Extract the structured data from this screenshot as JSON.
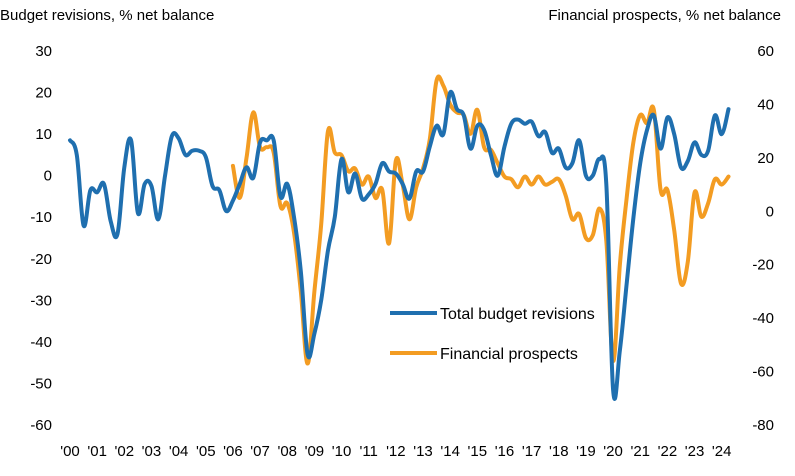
{
  "chart_data": {
    "type": "line",
    "title": "",
    "ylabel_left": "Budget revisions, % net balance",
    "ylabel_right": "Financial prospects, % net balance",
    "x_tick_labels": [
      "'00",
      "'01",
      "'02",
      "'03",
      "'04",
      "'05",
      "'06",
      "'07",
      "'08",
      "'09",
      "'10",
      "'11",
      "'12",
      "'13",
      "'14",
      "'15",
      "'16",
      "'17",
      "'18",
      "'19",
      "'20",
      "'21",
      "'22",
      "'23",
      "'24"
    ],
    "x_tick_years": [
      2000,
      2001,
      2002,
      2003,
      2004,
      2005,
      2006,
      2007,
      2008,
      2009,
      2010,
      2011,
      2012,
      2013,
      2014,
      2015,
      2016,
      2017,
      2018,
      2019,
      2020,
      2021,
      2022,
      2023,
      2024
    ],
    "xlim": [
      2000,
      2024.6
    ],
    "y_left": {
      "min": -60,
      "max": 30,
      "ticks": [
        30,
        20,
        10,
        0,
        -10,
        -20,
        -30,
        -40,
        -50,
        -60
      ]
    },
    "y_right": {
      "min": -80,
      "max": 60,
      "ticks": [
        60,
        40,
        20,
        0,
        -20,
        -40,
        -60,
        -80
      ]
    },
    "gridlines": false,
    "legend": {
      "placement": "center-right"
    },
    "series": [
      {
        "name": "Total budget revisions",
        "axis": "left",
        "color": "#1f6faf",
        "points": [
          [
            2000.0,
            8.5
          ],
          [
            2000.25,
            5.0
          ],
          [
            2000.5,
            -12.0
          ],
          [
            2000.75,
            -3.5
          ],
          [
            2001.0,
            -4.0
          ],
          [
            2001.25,
            -2.0
          ],
          [
            2001.5,
            -11.0
          ],
          [
            2001.75,
            -14.0
          ],
          [
            2002.0,
            2.0
          ],
          [
            2002.25,
            8.5
          ],
          [
            2002.5,
            -9.0
          ],
          [
            2002.75,
            -2.0
          ],
          [
            2003.0,
            -2.5
          ],
          [
            2003.25,
            -10.5
          ],
          [
            2003.5,
            0.0
          ],
          [
            2003.75,
            9.5
          ],
          [
            2004.0,
            9.0
          ],
          [
            2004.25,
            5.0
          ],
          [
            2004.5,
            6.0
          ],
          [
            2004.75,
            6.0
          ],
          [
            2005.0,
            4.5
          ],
          [
            2005.25,
            -2.5
          ],
          [
            2005.5,
            -3.5
          ],
          [
            2005.75,
            -8.5
          ],
          [
            2006.0,
            -6.0
          ],
          [
            2006.25,
            -2.0
          ],
          [
            2006.5,
            2.0
          ],
          [
            2006.75,
            -0.5
          ],
          [
            2007.0,
            8.0
          ],
          [
            2007.25,
            8.5
          ],
          [
            2007.5,
            8.5
          ],
          [
            2007.75,
            -5.0
          ],
          [
            2008.0,
            -2.0
          ],
          [
            2008.25,
            -10.0
          ],
          [
            2008.5,
            -23.0
          ],
          [
            2008.75,
            -43.0
          ],
          [
            2009.0,
            -38.0
          ],
          [
            2009.25,
            -30.0
          ],
          [
            2009.5,
            -18.0
          ],
          [
            2009.75,
            -10.0
          ],
          [
            2010.0,
            4.0
          ],
          [
            2010.25,
            -4.0
          ],
          [
            2010.5,
            0.5
          ],
          [
            2010.75,
            -5.5
          ],
          [
            2011.0,
            -4.5
          ],
          [
            2011.25,
            -2.0
          ],
          [
            2011.5,
            3.0
          ],
          [
            2011.75,
            1.0
          ],
          [
            2012.0,
            0.5
          ],
          [
            2012.25,
            -2.0
          ],
          [
            2012.5,
            -5.5
          ],
          [
            2012.75,
            1.0
          ],
          [
            2013.0,
            1.0
          ],
          [
            2013.25,
            7.0
          ],
          [
            2013.5,
            12.0
          ],
          [
            2013.75,
            10.0
          ],
          [
            2014.0,
            20.0
          ],
          [
            2014.25,
            16.0
          ],
          [
            2014.5,
            14.5
          ],
          [
            2014.75,
            6.5
          ],
          [
            2015.0,
            12.0
          ],
          [
            2015.25,
            11.0
          ],
          [
            2015.5,
            5.0
          ],
          [
            2015.75,
            0.0
          ],
          [
            2016.0,
            7.0
          ],
          [
            2016.25,
            12.5
          ],
          [
            2016.5,
            13.5
          ],
          [
            2016.75,
            12.5
          ],
          [
            2017.0,
            13.0
          ],
          [
            2017.25,
            9.5
          ],
          [
            2017.5,
            10.5
          ],
          [
            2017.75,
            5.5
          ],
          [
            2018.0,
            6.5
          ],
          [
            2018.25,
            2.0
          ],
          [
            2018.5,
            3.0
          ],
          [
            2018.75,
            8.5
          ],
          [
            2019.0,
            0.0
          ],
          [
            2019.25,
            0.0
          ],
          [
            2019.5,
            4.0
          ],
          [
            2019.75,
            -2.0
          ],
          [
            2020.0,
            -51.5
          ],
          [
            2020.25,
            -42.0
          ],
          [
            2020.5,
            -26.0
          ],
          [
            2020.75,
            -10.0
          ],
          [
            2021.0,
            3.0
          ],
          [
            2021.25,
            11.0
          ],
          [
            2021.5,
            14.5
          ],
          [
            2021.75,
            6.5
          ],
          [
            2022.0,
            14.0
          ],
          [
            2022.25,
            10.0
          ],
          [
            2022.5,
            2.0
          ],
          [
            2022.75,
            3.5
          ],
          [
            2023.0,
            8.0
          ],
          [
            2023.25,
            5.0
          ],
          [
            2023.5,
            6.0
          ],
          [
            2023.75,
            14.5
          ],
          [
            2024.0,
            10.0
          ],
          [
            2024.25,
            16.0
          ]
        ]
      },
      {
        "name": "Financial prospects",
        "axis": "right",
        "color": "#f39c22",
        "points": [
          [
            2006.0,
            17.0
          ],
          [
            2006.25,
            5.0
          ],
          [
            2006.5,
            20.0
          ],
          [
            2006.75,
            37.0
          ],
          [
            2007.0,
            24.0
          ],
          [
            2007.25,
            24.0
          ],
          [
            2007.5,
            22.0
          ],
          [
            2007.75,
            2.0
          ],
          [
            2008.0,
            3.0
          ],
          [
            2008.25,
            -8.0
          ],
          [
            2008.5,
            -30.0
          ],
          [
            2008.75,
            -57.0
          ],
          [
            2009.0,
            -30.0
          ],
          [
            2009.25,
            -5.0
          ],
          [
            2009.5,
            30.0
          ],
          [
            2009.75,
            22.0
          ],
          [
            2010.0,
            21.0
          ],
          [
            2010.25,
            15.0
          ],
          [
            2010.5,
            16.0
          ],
          [
            2010.75,
            10.0
          ],
          [
            2011.0,
            13.0
          ],
          [
            2011.25,
            5.0
          ],
          [
            2011.5,
            8.0
          ],
          [
            2011.75,
            -12.0
          ],
          [
            2012.0,
            19.0
          ],
          [
            2012.25,
            10.0
          ],
          [
            2012.5,
            -3.0
          ],
          [
            2012.75,
            9.0
          ],
          [
            2013.0,
            16.0
          ],
          [
            2013.25,
            27.0
          ],
          [
            2013.5,
            49.0
          ],
          [
            2013.75,
            47.0
          ],
          [
            2014.0,
            40.0
          ],
          [
            2014.25,
            37.0
          ],
          [
            2014.5,
            36.0
          ],
          [
            2014.75,
            29.0
          ],
          [
            2015.0,
            38.0
          ],
          [
            2015.25,
            24.0
          ],
          [
            2015.5,
            23.0
          ],
          [
            2015.75,
            18.0
          ],
          [
            2016.0,
            13.0
          ],
          [
            2016.25,
            12.0
          ],
          [
            2016.5,
            9.0
          ],
          [
            2016.75,
            13.0
          ],
          [
            2017.0,
            10.0
          ],
          [
            2017.25,
            13.0
          ],
          [
            2017.5,
            10.0
          ],
          [
            2017.75,
            11.0
          ],
          [
            2018.0,
            12.0
          ],
          [
            2018.25,
            6.0
          ],
          [
            2018.5,
            -3.0
          ],
          [
            2018.75,
            -1.0
          ],
          [
            2019.0,
            -10.0
          ],
          [
            2019.25,
            -9.0
          ],
          [
            2019.5,
            1.0
          ],
          [
            2019.75,
            -11.0
          ],
          [
            2020.0,
            -56.0
          ],
          [
            2020.25,
            -20.0
          ],
          [
            2020.5,
            5.0
          ],
          [
            2020.75,
            26.0
          ],
          [
            2021.0,
            36.0
          ],
          [
            2021.25,
            33.0
          ],
          [
            2021.5,
            38.0
          ],
          [
            2021.75,
            8.0
          ],
          [
            2022.0,
            8.0
          ],
          [
            2022.25,
            -7.0
          ],
          [
            2022.5,
            -27.0
          ],
          [
            2022.75,
            -19.0
          ],
          [
            2023.0,
            7.0
          ],
          [
            2023.25,
            -2.0
          ],
          [
            2023.5,
            3.0
          ],
          [
            2023.75,
            12.0
          ],
          [
            2024.0,
            10.0
          ],
          [
            2024.25,
            13.0
          ]
        ]
      }
    ]
  }
}
